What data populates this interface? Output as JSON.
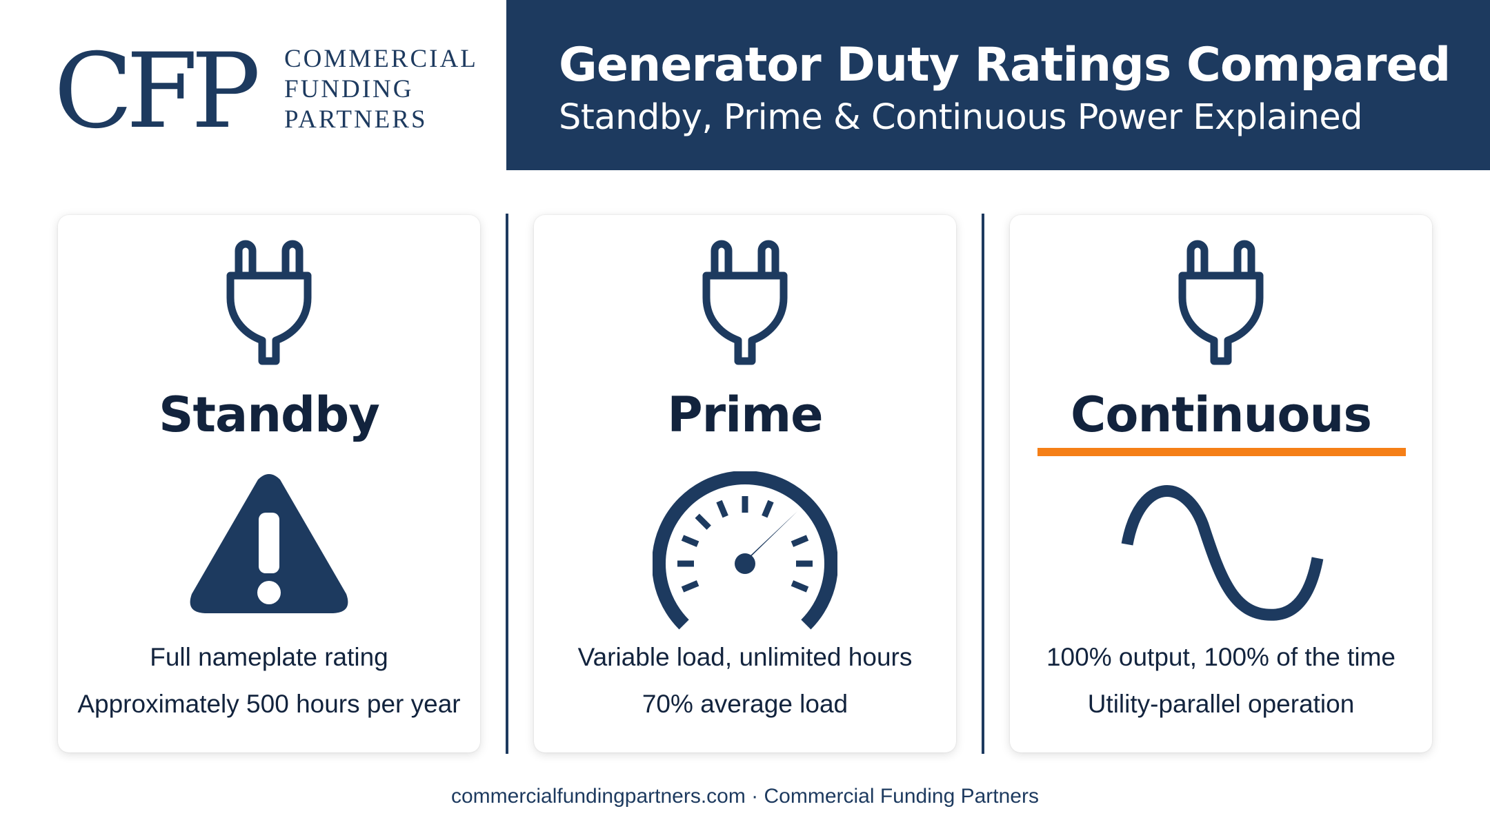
{
  "logo": {
    "mark": "CFP",
    "words": [
      "COMMERCIAL",
      "FUNDING",
      "PARTNERS"
    ]
  },
  "header": {
    "title": "Generator Duty Ratings Compared",
    "subtitle": "Standby, Prime & Continuous Power Explained"
  },
  "cards": [
    {
      "title": "Standby",
      "top_icon": "plug-icon",
      "icon": "warning-triangle-icon",
      "lines": [
        "Full nameplate rating",
        "Approximately 500 hours per year"
      ]
    },
    {
      "title": "Prime",
      "top_icon": "plug-icon",
      "icon": "gauge-icon",
      "lines": [
        "Variable load, unlimited hours",
        "70% average load"
      ]
    },
    {
      "title": "Continuous",
      "top_icon": "plug-icon",
      "icon": "sine-wave-icon",
      "lines": [
        "100% output, 100% of the time",
        "Utility-parallel operation"
      ]
    }
  ],
  "footer": {
    "text": "commercialfundingpartners.com · Commercial Funding Partners"
  },
  "colors": {
    "navy": "#1d3a5f",
    "text": "#12233d",
    "accent": "#f57f17",
    "background": "#ffffff"
  }
}
